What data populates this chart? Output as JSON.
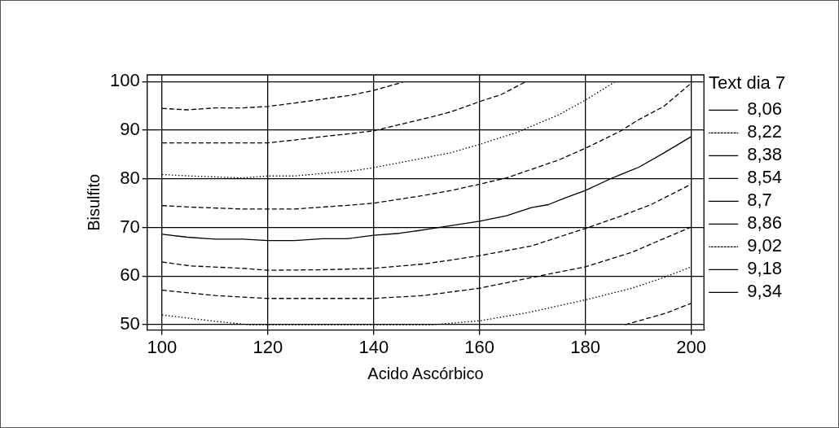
{
  "chart_data": {
    "type": "line",
    "xlabel": "Acido Ascórbico",
    "ylabel": "Bisulfito",
    "legend_title": "Text dia 7",
    "legend": "right",
    "grid": true,
    "marker": "none",
    "xlim": [
      97.2,
      202.4
    ],
    "ylim": [
      48.9,
      101.4
    ],
    "xticks": [
      100,
      120,
      140,
      160,
      180,
      200
    ],
    "yticks": [
      50,
      60,
      70,
      80,
      90,
      100
    ],
    "series": [
      {
        "name": "8,06",
        "color": "#000000",
        "line_style": "dashed",
        "x": [
          187.5,
          192.4,
          195.3,
          200
        ],
        "values": [
          50,
          51.5,
          52.4,
          54.4
        ]
      },
      {
        "name": "8,22",
        "color": "#000000",
        "line_style": "dotted",
        "x": [
          100,
          110,
          116.4,
          151.2,
          160,
          169.2,
          180,
          188.8,
          195.3,
          200
        ],
        "values": [
          52,
          50.7,
          50,
          50,
          50.8,
          52.5,
          55.1,
          57.5,
          59.9,
          61.9
        ]
      },
      {
        "name": "8,38",
        "color": "#000000",
        "line_style": "dashed",
        "x": [
          100,
          110,
          120,
          140,
          149.5,
          160,
          172.1,
          180,
          188.8,
          194.8,
          200
        ],
        "values": [
          57.1,
          56,
          55.4,
          55.4,
          56,
          57.5,
          60.2,
          61.9,
          64.9,
          67.7,
          70.1
        ]
      },
      {
        "name": "8,54",
        "color": "#000000",
        "line_style": "dashed",
        "x": [
          100,
          105.3,
          115.2,
          120,
          130.3,
          140,
          149.5,
          154.6,
          160,
          169.8,
          180,
          186.6,
          192.4,
          200
        ],
        "values": [
          62.9,
          62.1,
          61.6,
          61.2,
          61.3,
          61.6,
          62.5,
          63.3,
          64.2,
          66.2,
          69.8,
          72.3,
          74.7,
          78.9
        ]
      },
      {
        "name": "8,7",
        "color": "#000000",
        "line_style": "solid",
        "x": [
          100,
          104.8,
          110,
          115.2,
          120,
          125.1,
          130.3,
          135,
          140,
          144.9,
          150,
          160,
          165.1,
          169.8,
          173,
          176.2,
          180,
          184.9,
          190.1,
          194.8,
          200
        ],
        "values": [
          68.6,
          68,
          67.6,
          67.6,
          67.3,
          67.3,
          67.7,
          67.7,
          68.4,
          68.8,
          69.6,
          71.3,
          72.4,
          74.1,
          74.7,
          76.1,
          77.6,
          80.1,
          82.4,
          85.3,
          88.7
        ]
      },
      {
        "name": "8,86",
        "color": "#000000",
        "line_style": "dashed",
        "x": [
          100,
          105.3,
          115.2,
          120,
          125.1,
          130.3,
          135.6,
          140,
          149.5,
          154.6,
          160,
          165.1,
          175,
          180,
          186.6,
          190.1,
          194.8,
          200
        ],
        "values": [
          74.5,
          74.2,
          73.8,
          73.8,
          73.8,
          74.2,
          74.6,
          75,
          76.6,
          77.6,
          78.9,
          80.2,
          83.9,
          86.3,
          89.8,
          92.2,
          94.9,
          99.7
        ]
      },
      {
        "name": "9,02",
        "color": "#000000",
        "line_style": "dotted",
        "x": [
          100,
          105.3,
          115.2,
          120,
          125.1,
          130.3,
          135.6,
          140,
          149.5,
          154.6,
          160,
          166.9,
          175,
          180,
          185.5
        ],
        "values": [
          80.9,
          80.6,
          80.2,
          80.6,
          80.6,
          81.1,
          81.6,
          82.3,
          84.3,
          85.4,
          87.1,
          89.5,
          93.2,
          96.2,
          99.9
        ]
      },
      {
        "name": "9,18",
        "color": "#000000",
        "line_style": "dashed",
        "x": [
          100,
          110,
          120,
          125.1,
          130.3,
          135.6,
          140,
          150,
          154.6,
          160,
          164,
          168.6
        ],
        "values": [
          87.4,
          87.4,
          87.4,
          88,
          88.7,
          89.3,
          89.9,
          92.5,
          93.8,
          95.9,
          97.3,
          99.9
        ]
      },
      {
        "name": "9,34",
        "color": "#000000",
        "line_style": "dashed",
        "x": [
          100,
          104.8,
          110,
          115.2,
          120,
          125.1,
          130.3,
          135.6,
          140,
          145.5
        ],
        "values": [
          94.5,
          94.2,
          94.6,
          94.6,
          94.9,
          95.6,
          96.4,
          97.2,
          98.2,
          99.9
        ]
      }
    ]
  }
}
